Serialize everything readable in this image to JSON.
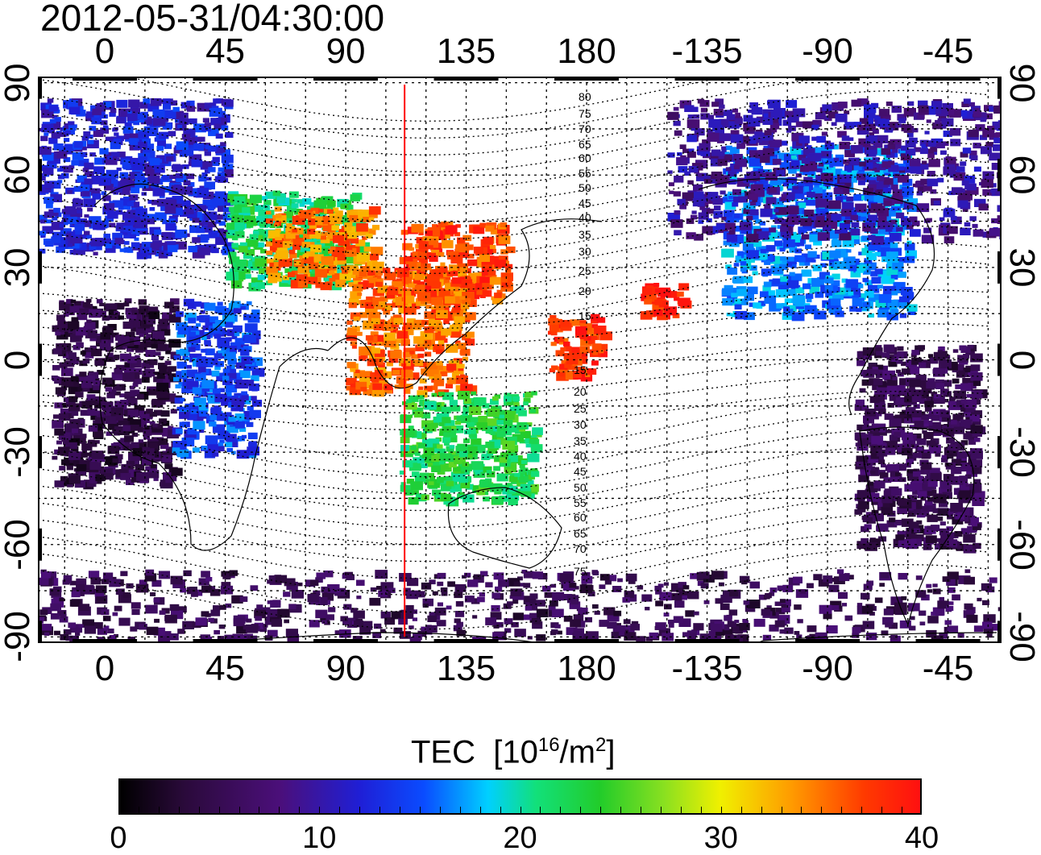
{
  "title": "2012-05-31/04:30:00",
  "colors": {
    "frame": "#000000",
    "grid": "#000000",
    "terminator": "#ff0000",
    "coast": "#000000"
  },
  "map": {
    "top_ticks": [
      "0",
      "45",
      "90",
      "135",
      "180",
      "-135",
      "-90",
      "-45"
    ],
    "bottom_ticks": [
      "0",
      "45",
      "90",
      "135",
      "180",
      "-135",
      "-90",
      "-45"
    ],
    "left_ticks": [
      "90",
      "60",
      "30",
      "0",
      "-30",
      "-60",
      "-90"
    ],
    "right_ticks": [
      "90",
      "60",
      "30",
      "0",
      "-30",
      "-60",
      "-90"
    ],
    "tick_lon_values": [
      0,
      45,
      90,
      135,
      180,
      225,
      270,
      315
    ],
    "tick_lat_values": [
      90,
      60,
      30,
      0,
      -30,
      -60,
      -90
    ],
    "lon_range": [
      -25,
      335
    ],
    "lat_range": [
      -92,
      92
    ],
    "terminator_lon": 112,
    "contour_labels_north": [
      "80",
      "75",
      "70",
      "65",
      "60",
      "55",
      "50",
      "45",
      "40",
      "35",
      "30",
      "25",
      "20",
      "15"
    ],
    "contour_labels_south": [
      "15",
      "20",
      "25",
      "30",
      "35",
      "40",
      "45",
      "50",
      "55",
      "60",
      "65",
      "70",
      "75"
    ]
  },
  "colorbar": {
    "title": "TEC",
    "unit_prefix": "[10",
    "unit_exp": "16",
    "unit_mid": "/m",
    "unit_sq": "2",
    "unit_suffix": "]",
    "ticks": [
      "0",
      "10",
      "20",
      "30",
      "40"
    ],
    "range": [
      0,
      40
    ]
  },
  "chart_data": {
    "type": "heatmap",
    "title": "2012-05-31/04:30:00",
    "colorbar_label": "TEC [10^16/m^2]",
    "colorbar_range": [
      0,
      40
    ],
    "x_ticks": [
      "0",
      "45",
      "90",
      "135",
      "180",
      "-135",
      "-90",
      "-45"
    ],
    "y_ticks": [
      "90",
      "60",
      "30",
      "0",
      "-30",
      "-60",
      "-90"
    ],
    "regions": [
      {
        "lon": [
          -25,
          45
        ],
        "lat": [
          35,
          85
        ],
        "tec": 12
      },
      {
        "lon": [
          45,
          95
        ],
        "lat": [
          25,
          55
        ],
        "tec": 22
      },
      {
        "lon": [
          60,
          100
        ],
        "lat": [
          25,
          50
        ],
        "tec": 35
      },
      {
        "lon": [
          -20,
          25
        ],
        "lat": [
          -40,
          20
        ],
        "tec": 4
      },
      {
        "lon": [
          25,
          55
        ],
        "lat": [
          -30,
          20
        ],
        "tec": 14
      },
      {
        "lon": [
          90,
          135
        ],
        "lat": [
          -10,
          30
        ],
        "tec": 36
      },
      {
        "lon": [
          110,
          150
        ],
        "lat": [
          20,
          45
        ],
        "tec": 37
      },
      {
        "lon": [
          110,
          160
        ],
        "lat": [
          -45,
          -10
        ],
        "tec": 23
      },
      {
        "lon": [
          165,
          185
        ],
        "lat": [
          -5,
          15
        ],
        "tec": 38
      },
      {
        "lon": [
          200,
          215
        ],
        "lat": [
          15,
          25
        ],
        "tec": 39
      },
      {
        "lon": [
          230,
          300
        ],
        "lat": [
          15,
          70
        ],
        "tec": 16
      },
      {
        "lon": [
          280,
          325
        ],
        "lat": [
          -60,
          5
        ],
        "tec": 5
      },
      {
        "lon": [
          -25,
          335
        ],
        "lat": [
          -90,
          -68
        ],
        "tec": 5
      },
      {
        "lon": [
          210,
          335
        ],
        "lat": [
          40,
          85
        ],
        "tec": 9
      }
    ]
  }
}
